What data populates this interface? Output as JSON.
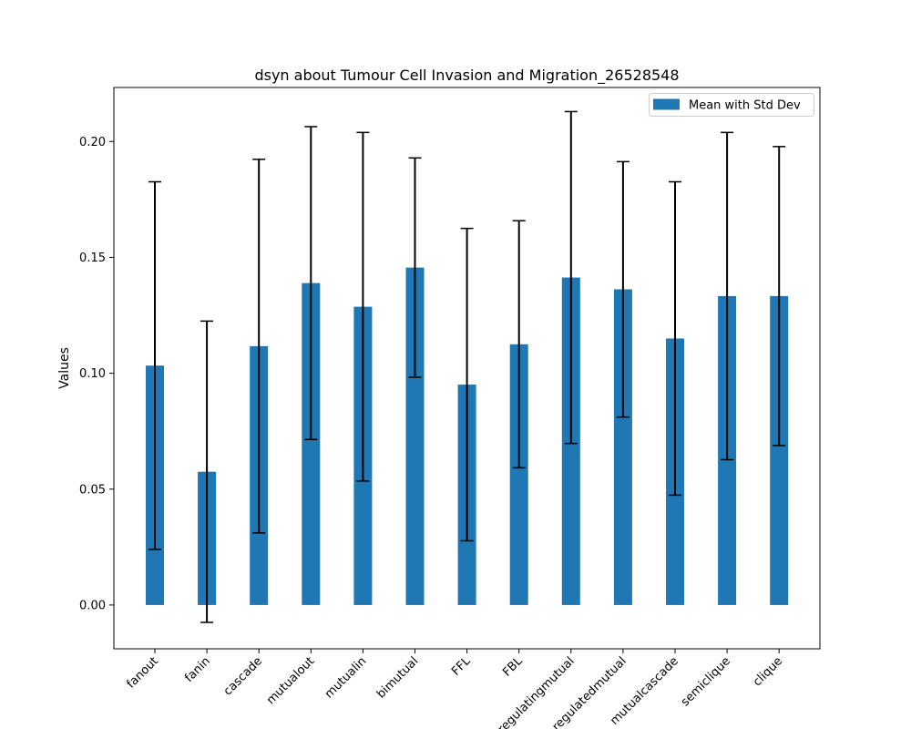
{
  "chart_data": {
    "type": "bar",
    "title": "dsyn about Tumour Cell Invasion and Migration_26528548",
    "xlabel": "",
    "ylabel": "Values",
    "categories": [
      "fanout",
      "fanin",
      "cascade",
      "mutualout",
      "mutualin",
      "bimutual",
      "FFL",
      "FBL",
      "regulatingmutual",
      "regulatedmutual",
      "mutualcascade",
      "semiclique",
      "clique"
    ],
    "series": [
      {
        "name": "Mean with Std Dev",
        "values": [
          0.1033,
          0.0575,
          0.1117,
          0.1389,
          0.1287,
          0.1456,
          0.0951,
          0.1125,
          0.1413,
          0.1362,
          0.115,
          0.1333,
          0.1333
        ],
        "errors": [
          0.0793,
          0.065,
          0.0806,
          0.0675,
          0.0752,
          0.0473,
          0.0674,
          0.0533,
          0.0716,
          0.0551,
          0.0676,
          0.0706,
          0.0645
        ]
      }
    ],
    "ylim": [
      -0.0189,
      0.2233
    ],
    "yticks": [
      "0.00",
      "0.05",
      "0.10",
      "0.15",
      "0.20"
    ],
    "ytick_values": [
      0.0,
      0.05,
      0.1,
      0.15,
      0.2
    ],
    "legend_position": "top-right",
    "grid": false,
    "colors": {
      "bar": "#1f77b4",
      "error_bar": "#000000",
      "axes": "#000000",
      "background": "#ffffff"
    }
  }
}
